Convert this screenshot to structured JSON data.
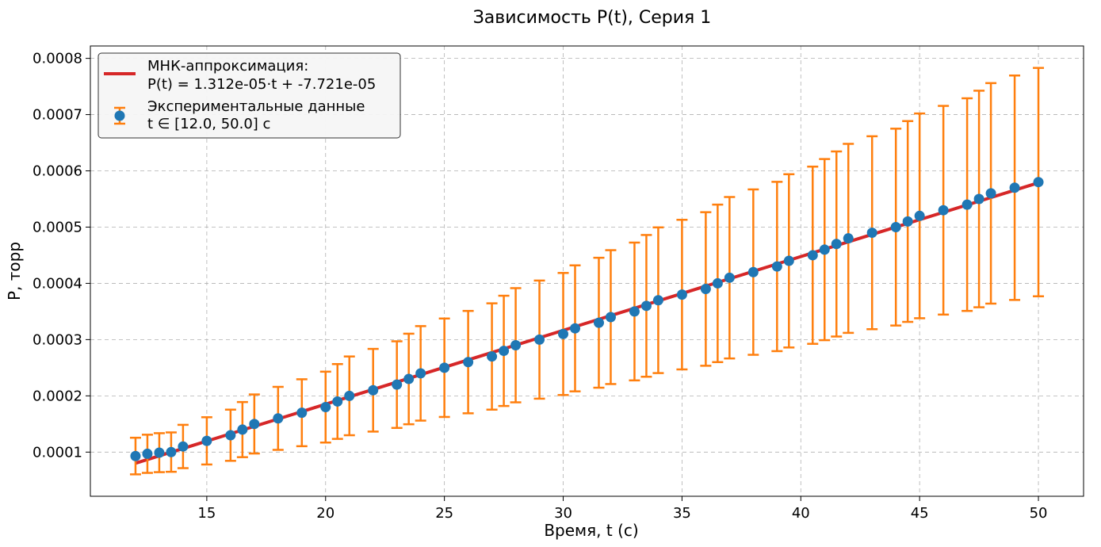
{
  "chart_data": {
    "type": "scatter",
    "title": "Зависимость P(t), Серия 1",
    "xlabel": "Время, t (с)",
    "ylabel": "P, торр",
    "xlim": [
      10.1,
      51.9
    ],
    "ylim": [
      2.15e-05,
      0.000822
    ],
    "xticks": [
      15,
      20,
      25,
      30,
      35,
      40,
      45,
      50
    ],
    "yticks": [
      0.0001,
      0.0002,
      0.0003,
      0.0004,
      0.0005,
      0.0006,
      0.0007,
      0.0008
    ],
    "ytick_labels": [
      "0.0001",
      "0.0002",
      "0.0003",
      "0.0004",
      "0.0005",
      "0.0006",
      "0.0007",
      "0.0008"
    ],
    "grid": true,
    "legend_position": "top-left",
    "fit": {
      "label_line1": "МНК-аппроксимация:",
      "label_line2": "P(t) = 1.312e-05·t + -7.721e-05",
      "slope": 1.312e-05,
      "intercept": -7.721e-05,
      "x_range": [
        12.0,
        50.0
      ],
      "color": "#d62728"
    },
    "series": [
      {
        "name_line1": "Экспериментальные данные",
        "name_line2": "t ∈ [12.0, 50.0] с",
        "marker_color": "#1f77b4",
        "errorbar_color": "#ff7f0e",
        "relative_error": 0.35,
        "x": [
          12.0,
          12.5,
          13.0,
          13.5,
          14.0,
          15.0,
          16.0,
          16.5,
          17.0,
          18.0,
          19.0,
          20.0,
          20.5,
          21.0,
          22.0,
          23.0,
          23.5,
          24.0,
          25.0,
          26.0,
          27.0,
          27.5,
          28.0,
          29.0,
          30.0,
          30.5,
          31.5,
          32.0,
          33.0,
          33.5,
          34.0,
          35.0,
          36.0,
          36.5,
          37.0,
          38.0,
          39.0,
          39.5,
          40.5,
          41.0,
          41.5,
          42.0,
          43.0,
          44.0,
          44.5,
          45.0,
          46.0,
          47.0,
          47.5,
          48.0,
          49.0,
          50.0
        ],
        "y": [
          9.3e-05,
          9.7e-05,
          9.9e-05,
          0.0001,
          0.00011,
          0.00012,
          0.00013,
          0.00014,
          0.00015,
          0.00016,
          0.00017,
          0.00018,
          0.00019,
          0.0002,
          0.00021,
          0.00022,
          0.00023,
          0.00024,
          0.00025,
          0.00026,
          0.00027,
          0.00028,
          0.00029,
          0.0003,
          0.00031,
          0.00032,
          0.00033,
          0.00034,
          0.00035,
          0.00036,
          0.00037,
          0.00038,
          0.00039,
          0.0004,
          0.00041,
          0.00042,
          0.00043,
          0.00044,
          0.00045,
          0.00046,
          0.00047,
          0.00048,
          0.00049,
          0.0005,
          0.00051,
          0.00052,
          0.00053,
          0.00054,
          0.00055,
          0.00056,
          0.00057,
          0.00058
        ]
      }
    ]
  }
}
